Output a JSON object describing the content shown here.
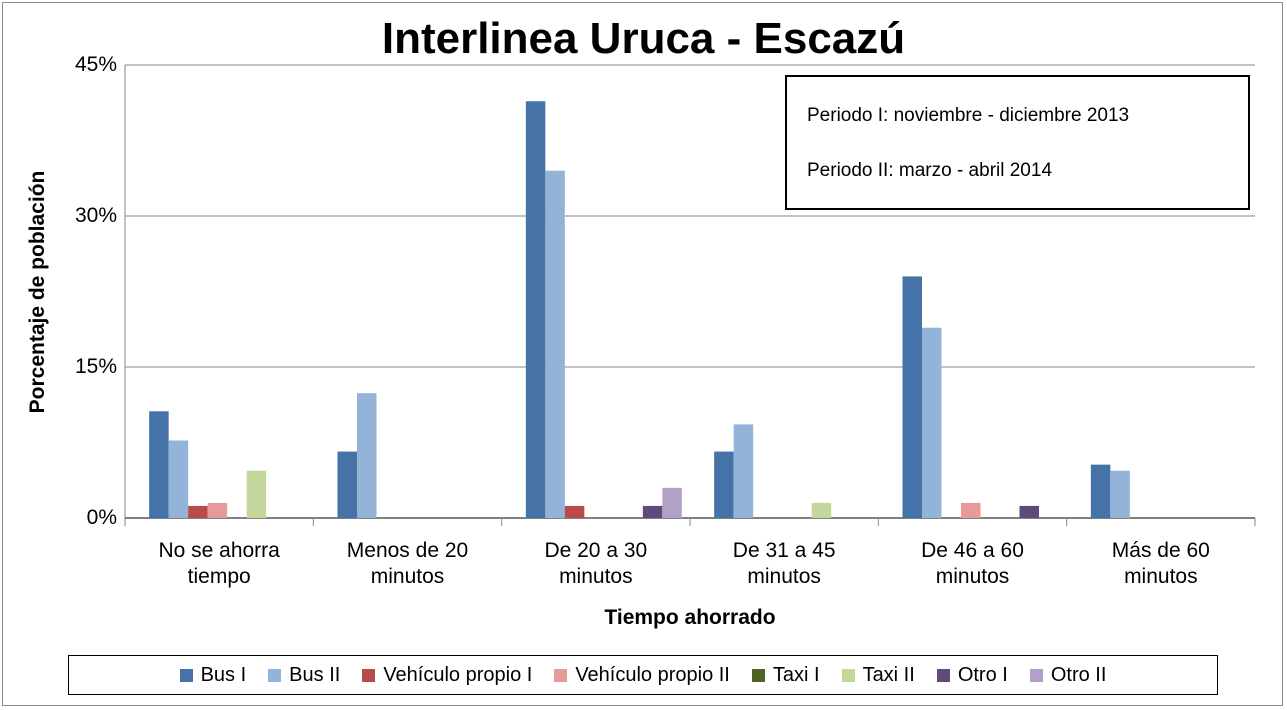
{
  "chart_data": {
    "type": "bar",
    "title": "Interlinea Uruca - Escazú",
    "y_label": "Porcentaje de población",
    "x_label": "Tiempo ahorrado",
    "annotations": [
      "Periodo I: noviembre - diciembre 2013",
      "Periodo II: marzo - abril 2014"
    ],
    "categories": [
      "No se ahorra tiempo",
      "Menos de 20 minutos",
      "De 20 a 30 minutos",
      "De 31 a 45 minutos",
      "De 46 a 60 minutos",
      "Más de 60 minutos"
    ],
    "series": [
      {
        "name": "Bus I",
        "color": "#4572a7",
        "values": [
          10.6,
          6.6,
          41.4,
          6.6,
          24.0,
          5.3
        ]
      },
      {
        "name": "Bus II",
        "color": "#93b3d9",
        "values": [
          7.7,
          12.4,
          34.5,
          9.3,
          18.9,
          4.7
        ]
      },
      {
        "name": "Vehículo propio I",
        "color": "#b94b48",
        "values": [
          1.2,
          0,
          1.2,
          0,
          0,
          0
        ]
      },
      {
        "name": "Vehículo propio II",
        "color": "#e69b99",
        "values": [
          1.5,
          0,
          0,
          0,
          1.5,
          0
        ]
      },
      {
        "name": "Taxi I",
        "color": "#4f6228",
        "values": [
          0,
          0,
          0,
          0,
          0,
          0
        ]
      },
      {
        "name": "Taxi II",
        "color": "#c3d69b",
        "values": [
          4.7,
          0,
          0,
          1.5,
          0,
          0
        ]
      },
      {
        "name": "Otro I",
        "color": "#604a7b",
        "values": [
          0,
          0,
          1.2,
          0,
          1.2,
          0
        ]
      },
      {
        "name": "Otro II",
        "color": "#b2a1c7",
        "values": [
          0,
          0,
          3.0,
          0,
          0,
          0
        ]
      }
    ],
    "ylim": [
      0,
      45
    ],
    "yticks": [
      {
        "value": 0,
        "label": "0%"
      },
      {
        "value": 15,
        "label": "15%"
      },
      {
        "value": 30,
        "label": "30%"
      },
      {
        "value": 45,
        "label": "45%"
      }
    ],
    "grid": true,
    "legend": "bottom"
  }
}
